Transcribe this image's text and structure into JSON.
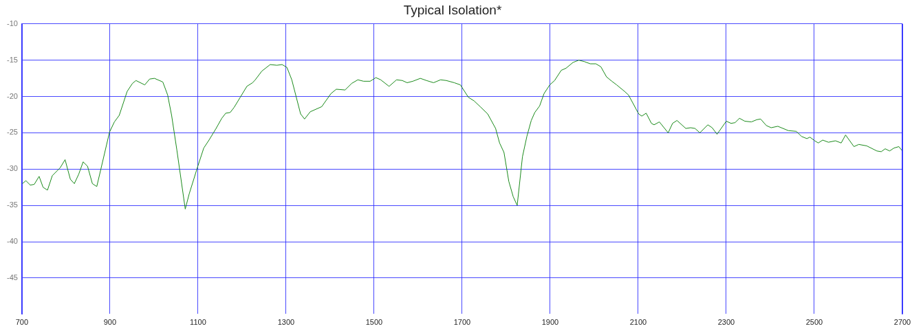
{
  "chart_data": {
    "type": "line",
    "title": "Typical Isolation*",
    "xlim": [
      700,
      2700
    ],
    "xticks": [
      700,
      900,
      1100,
      1300,
      1500,
      1700,
      1900,
      2100,
      2300,
      2500,
      2700
    ],
    "ylim": [
      -50,
      -10
    ],
    "yticks": [
      -45,
      -40,
      -35,
      -30,
      -25,
      -20,
      -15,
      -10
    ],
    "grid": true,
    "legend": false,
    "marker": "none",
    "line_style": "solid",
    "series": [
      {
        "color": "#1a8a1a",
        "x": [
          701,
          709,
          719,
          728,
          739,
          748,
          758,
          769,
          787,
          798,
          810,
          819,
          829,
          839,
          849,
          860,
          870,
          899,
          910,
          921,
          939,
          951,
          959,
          979,
          990,
          1001,
          1020,
          1031,
          1040,
          1052,
          1071,
          1080,
          1099,
          1113,
          1125,
          1141,
          1154,
          1163,
          1173,
          1182,
          1196,
          1211,
          1224,
          1230,
          1245,
          1264,
          1279,
          1291,
          1302,
          1313,
          1333,
          1342,
          1355,
          1381,
          1402,
          1414,
          1434,
          1449,
          1463,
          1476,
          1491,
          1504,
          1515,
          1534,
          1551,
          1564,
          1575,
          1588,
          1605,
          1619,
          1635,
          1651,
          1664,
          1682,
          1696,
          1714,
          1727,
          1741,
          1758,
          1776,
          1785,
          1795,
          1806,
          1816,
          1825,
          1837,
          1847,
          1857,
          1865,
          1876,
          1886,
          1899,
          1910,
          1925,
          1936,
          1952,
          1965,
          1978,
          1991,
          2004,
          2015,
          2028,
          2040,
          2051,
          2069,
          2078,
          2101,
          2108,
          2118,
          2130,
          2136,
          2148,
          2168,
          2178,
          2188,
          2208,
          2219,
          2229,
          2240,
          2258,
          2268,
          2279,
          2300,
          2311,
          2320,
          2330,
          2342,
          2357,
          2369,
          2378,
          2391,
          2402,
          2417,
          2441,
          2459,
          2471,
          2483,
          2490,
          2501,
          2509,
          2519,
          2532,
          2548,
          2561,
          2571,
          2590,
          2601,
          2619,
          2642,
          2652,
          2661,
          2671,
          2681,
          2692,
          2700
        ],
        "values": [
          -32.0,
          -31.6,
          -32.2,
          -32.1,
          -31.0,
          -32.5,
          -32.9,
          -30.9,
          -29.8,
          -28.7,
          -31.4,
          -32.0,
          -30.7,
          -29.0,
          -29.6,
          -32.0,
          -32.4,
          -24.9,
          -23.5,
          -22.6,
          -19.3,
          -18.2,
          -17.8,
          -18.4,
          -17.6,
          -17.5,
          -18.0,
          -19.8,
          -22.6,
          -27.4,
          -35.5,
          -33.4,
          -29.7,
          -27.1,
          -26.0,
          -24.4,
          -23.0,
          -22.3,
          -22.2,
          -21.5,
          -20.1,
          -18.6,
          -18.1,
          -17.7,
          -16.5,
          -15.6,
          -15.7,
          -15.6,
          -16.0,
          -17.7,
          -22.4,
          -23.1,
          -22.1,
          -21.4,
          -19.6,
          -19.0,
          -19.1,
          -18.2,
          -17.7,
          -17.9,
          -17.9,
          -17.4,
          -17.7,
          -18.6,
          -17.7,
          -17.8,
          -18.1,
          -17.9,
          -17.5,
          -17.8,
          -18.1,
          -17.7,
          -17.8,
          -18.1,
          -18.4,
          -20.1,
          -20.6,
          -21.4,
          -22.4,
          -24.4,
          -26.4,
          -27.7,
          -31.7,
          -33.8,
          -35.0,
          -28.3,
          -25.5,
          -23.3,
          -22.2,
          -21.3,
          -19.6,
          -18.4,
          -17.8,
          -16.4,
          -16.1,
          -15.3,
          -15.0,
          -15.2,
          -15.5,
          -15.5,
          -15.9,
          -17.3,
          -17.9,
          -18.4,
          -19.3,
          -19.8,
          -22.4,
          -22.7,
          -22.3,
          -23.7,
          -23.9,
          -23.5,
          -25.0,
          -23.7,
          -23.3,
          -24.4,
          -24.3,
          -24.4,
          -25.0,
          -23.9,
          -24.3,
          -25.2,
          -23.4,
          -23.7,
          -23.6,
          -23.0,
          -23.4,
          -23.5,
          -23.2,
          -23.1,
          -24.0,
          -24.3,
          -24.1,
          -24.7,
          -24.8,
          -25.5,
          -25.8,
          -25.6,
          -26.1,
          -26.4,
          -26.0,
          -26.3,
          -26.1,
          -26.4,
          -25.3,
          -26.9,
          -26.6,
          -26.8,
          -27.5,
          -27.6,
          -27.2,
          -27.5,
          -27.1,
          -26.9,
          -27.5
        ]
      }
    ]
  }
}
